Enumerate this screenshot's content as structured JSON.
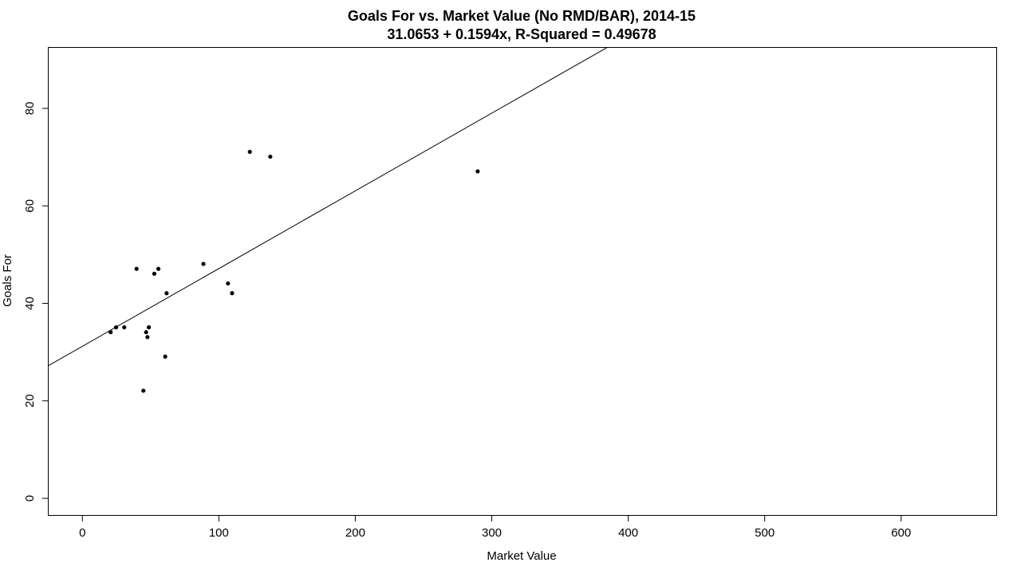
{
  "chart_data": {
    "type": "scatter",
    "title": "Goals For vs. Market Value (No RMD/BAR), 2014-15",
    "subtitle": "31.0653 + 0.1594x, R-Squared = 0.49678",
    "xlabel": "Market Value",
    "ylabel": "Goals For",
    "xlim": [
      -25,
      670
    ],
    "ylim": [
      -3.5,
      92.5
    ],
    "xticks": [
      0,
      100,
      200,
      300,
      400,
      500,
      600
    ],
    "yticks": [
      0,
      20,
      40,
      60,
      80
    ],
    "xtick_labels": [
      "0",
      "100",
      "200",
      "300",
      "400",
      "500",
      "600"
    ],
    "ytick_labels": [
      "0",
      "20",
      "40",
      "60",
      "80"
    ],
    "grid": false,
    "legend": null,
    "regression": {
      "intercept": 31.0653,
      "slope": 0.1594
    },
    "series": [
      {
        "points": [
          {
            "x": 21,
            "y": 34
          },
          {
            "x": 25,
            "y": 35
          },
          {
            "x": 31,
            "y": 35
          },
          {
            "x": 40,
            "y": 47
          },
          {
            "x": 45,
            "y": 22
          },
          {
            "x": 47,
            "y": 34
          },
          {
            "x": 48,
            "y": 33
          },
          {
            "x": 49,
            "y": 35
          },
          {
            "x": 53,
            "y": 46
          },
          {
            "x": 56,
            "y": 47
          },
          {
            "x": 61,
            "y": 29
          },
          {
            "x": 62,
            "y": 42
          },
          {
            "x": 89,
            "y": 48
          },
          {
            "x": 107,
            "y": 44
          },
          {
            "x": 110,
            "y": 42
          },
          {
            "x": 123,
            "y": 71
          },
          {
            "x": 138,
            "y": 70
          },
          {
            "x": 290,
            "y": 67
          }
        ]
      }
    ]
  }
}
